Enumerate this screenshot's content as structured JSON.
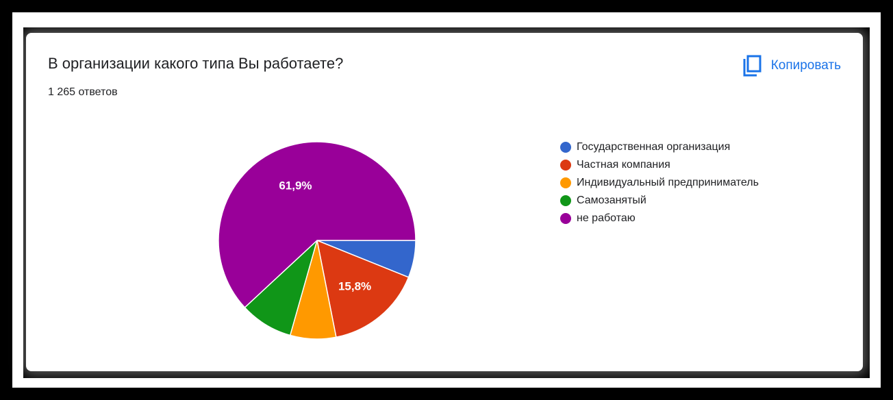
{
  "card": {
    "title": "В организации какого типа Вы работаете?",
    "responses": "1 265 ответов",
    "copy": {
      "label": "Копировать",
      "icon": "copy-icon",
      "color": "#1a73e8"
    }
  },
  "chart_data": {
    "type": "pie",
    "title": "В организации какого типа Вы работаете?",
    "legend_position": "right",
    "start_angle_deg": 90,
    "direction": "clockwise",
    "slices": [
      {
        "label": "Государственная организация",
        "value": 6.1,
        "color": "#3366cc",
        "data_label": ""
      },
      {
        "label": "Частная компания",
        "value": 15.8,
        "color": "#dc3912",
        "data_label": "15,8%"
      },
      {
        "label": "Индивидуальный предприниматель",
        "value": 7.5,
        "color": "#ff9900",
        "data_label": ""
      },
      {
        "label": "Самозанятый",
        "value": 8.7,
        "color": "#109618",
        "data_label": ""
      },
      {
        "label": "не работаю",
        "value": 61.9,
        "color": "#990099",
        "data_label": "61,9%"
      }
    ]
  }
}
